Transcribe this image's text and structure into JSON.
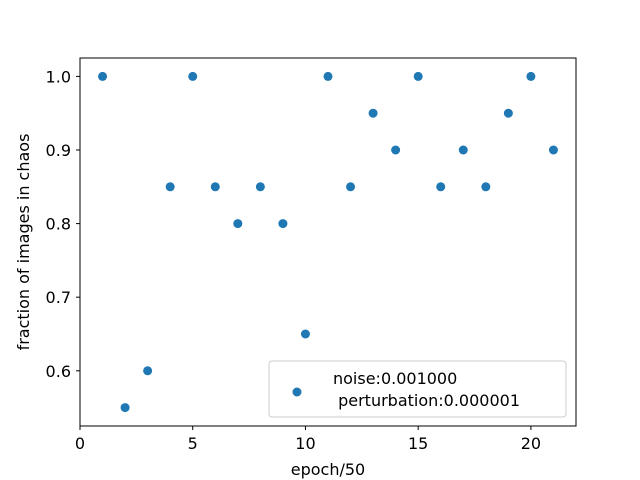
{
  "chart_data": {
    "type": "scatter",
    "xlabel": "epoch/50",
    "ylabel": "fraction of images in chaos",
    "xlim": [
      0,
      22
    ],
    "ylim": [
      0.525,
      1.025
    ],
    "xticks": [
      0,
      5,
      10,
      15,
      20
    ],
    "yticks": [
      0.6,
      0.7,
      0.8,
      0.9,
      1.0
    ],
    "xtick_labels": [
      "0",
      "5",
      "10",
      "15",
      "20"
    ],
    "ytick_labels": [
      "0.6",
      "0.7",
      "0.8",
      "0.9",
      "1.0"
    ],
    "grid": false,
    "legend_position": "lower right",
    "series": [
      {
        "name": "noise:0.001000\n perturbation:0.000001",
        "color": "#1f77b4",
        "x": [
          1,
          2,
          3,
          4,
          5,
          6,
          7,
          8,
          9,
          10,
          11,
          12,
          13,
          14,
          15,
          16,
          17,
          18,
          19,
          20,
          21
        ],
        "y": [
          1.0,
          0.55,
          0.6,
          0.85,
          1.0,
          0.85,
          0.8,
          0.85,
          0.8,
          0.65,
          1.0,
          0.85,
          0.95,
          0.9,
          1.0,
          0.85,
          0.9,
          0.85,
          0.95,
          1.0,
          0.9
        ]
      }
    ],
    "legend_lines": [
      "noise:0.001000",
      " perturbation:0.000001"
    ]
  }
}
